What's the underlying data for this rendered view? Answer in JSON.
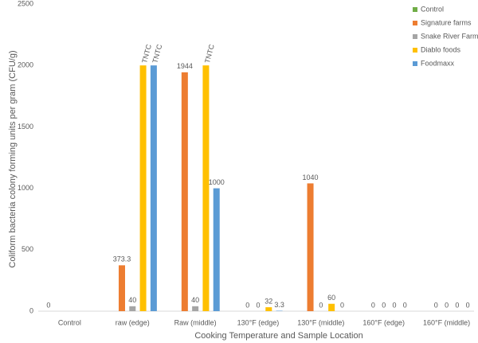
{
  "chart_data": {
    "type": "bar",
    "x_label": "Cooking Temperature and Sample Location",
    "y_label": "Coliform bacteria colony forming units per gram (CFU/g)",
    "categories": [
      "Control",
      "raw (edge)",
      "Raw (middle)",
      "130°F (edge)",
      "130°F (middle)",
      "160°F (edge)",
      "160°F (middle)"
    ],
    "series": [
      {
        "name": "Control",
        "color": "#70ad47",
        "values": [
          0,
          null,
          null,
          null,
          null,
          null,
          null
        ]
      },
      {
        "name": "Signature farms",
        "color": "#ed7d31",
        "values": [
          null,
          373.3,
          1944,
          0,
          1040,
          0,
          0
        ]
      },
      {
        "name": "Snake River Farms",
        "color": "#a5a5a5",
        "values": [
          null,
          40,
          40,
          0,
          0,
          0,
          0
        ]
      },
      {
        "name": "Diablo foods",
        "color": "#ffc000",
        "values": [
          null,
          2000,
          2000,
          32,
          60,
          0,
          0
        ],
        "value_labels": [
          null,
          "TNTC",
          "TNTC",
          "32",
          "60",
          "0",
          "0"
        ]
      },
      {
        "name": "Foodmaxx",
        "color": "#5b9bd5",
        "values": [
          null,
          2000,
          1000,
          3.3,
          0,
          0,
          0
        ],
        "value_labels": [
          null,
          "TNTC",
          "1000",
          "3.3",
          "0",
          "0",
          "0"
        ]
      }
    ],
    "ylim": [
      0,
      2500
    ],
    "yticks": [
      0,
      500,
      1000,
      1500,
      2000,
      2500
    ],
    "legend": "top-right"
  }
}
